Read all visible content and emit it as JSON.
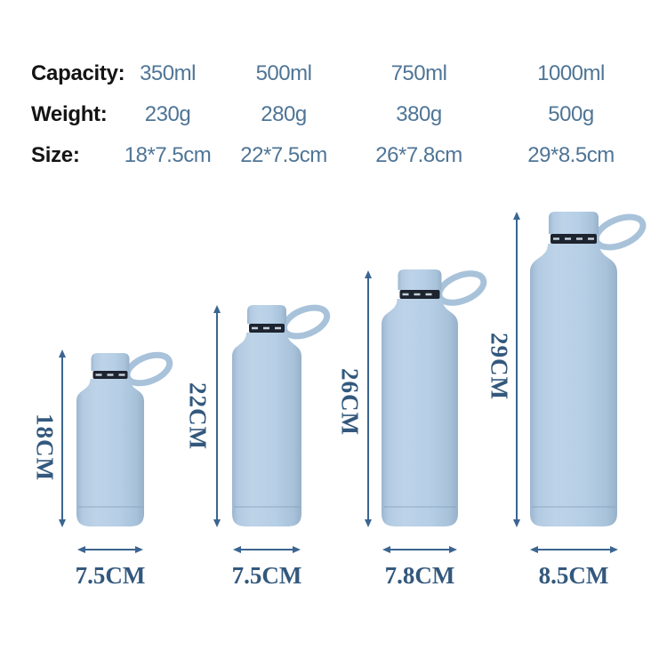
{
  "specs": {
    "rows": [
      {
        "label": "Capacity:",
        "values": [
          "350ml",
          "500ml",
          "750ml",
          "1000ml"
        ]
      },
      {
        "label": "Weight:",
        "values": [
          "230g",
          "280g",
          "380g",
          "500g"
        ]
      },
      {
        "label": "Size:",
        "values": [
          "18*7.5cm",
          "22*7.5cm",
          "26*7.8cm",
          "29*8.5cm"
        ]
      }
    ]
  },
  "bottles": [
    {
      "name": "350ml bottle",
      "height_label": "18CM",
      "width_label": "7.5CM"
    },
    {
      "name": "500ml bottle",
      "height_label": "22CM",
      "width_label": "7.5CM"
    },
    {
      "name": "750ml bottle",
      "height_label": "26CM",
      "width_label": "7.8CM"
    },
    {
      "name": "1000ml bottle",
      "height_label": "29CM",
      "width_label": "8.5CM"
    }
  ],
  "colors": {
    "background": "#ffffff",
    "table_label_text": "#141414",
    "table_value_text": "#4f7596",
    "dimension_text": "#33587d",
    "arrow": "#3b6590",
    "bottle_body": "#b6cfe6",
    "bottle_band": "#1d242f"
  }
}
